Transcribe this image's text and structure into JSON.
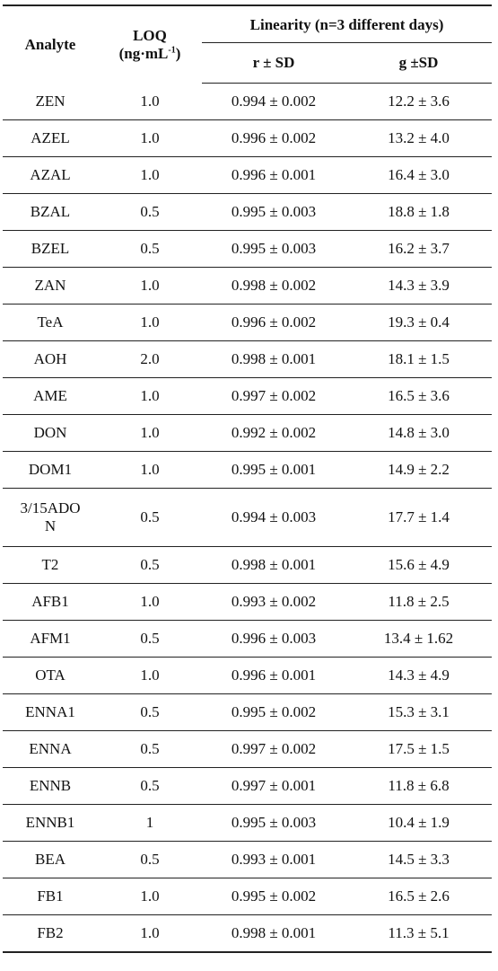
{
  "headers": {
    "analyte": "Analyte",
    "loq_line1": "LOQ",
    "loq_line2_prefix": "(ng·mL",
    "loq_sup": "-1",
    "loq_line2_suffix": ")",
    "linearity": "Linearity (n=3 different days)",
    "r_sd": "r ± SD",
    "g_sd": "g ±SD"
  },
  "rows": [
    {
      "analyte": "ZEN",
      "loq": "1.0",
      "r": "0.994 ± 0.002",
      "g": "12.2 ± 3.6"
    },
    {
      "analyte": "AZEL",
      "loq": "1.0",
      "r": "0.996 ± 0.002",
      "g": "13.2 ± 4.0"
    },
    {
      "analyte": "AZAL",
      "loq": "1.0",
      "r": "0.996 ± 0.001",
      "g": "16.4 ± 3.0"
    },
    {
      "analyte": "BZAL",
      "loq": "0.5",
      "r": "0.995 ± 0.003",
      "g": "18.8 ± 1.8"
    },
    {
      "analyte": "BZEL",
      "loq": "0.5",
      "r": "0.995 ± 0.003",
      "g": "16.2 ± 3.7"
    },
    {
      "analyte": "ZAN",
      "loq": "1.0",
      "r": "0.998 ± 0.002",
      "g": "14.3 ± 3.9"
    },
    {
      "analyte": "TeA",
      "loq": "1.0",
      "r": "0.996 ± 0.002",
      "g": "19.3 ± 0.4"
    },
    {
      "analyte": "AOH",
      "loq": "2.0",
      "r": "0.998 ± 0.001",
      "g": "18.1 ± 1.5"
    },
    {
      "analyte": "AME",
      "loq": "1.0",
      "r": "0.997 ± 0.002",
      "g": "16.5 ± 3.6"
    },
    {
      "analyte": "DON",
      "loq": "1.0",
      "r": "0.992  ± 0.002",
      "g": "14.8 ± 3.0"
    },
    {
      "analyte": "DOM1",
      "loq": "1.0",
      "r": "0.995 ± 0.001",
      "g": "14.9 ± 2.2"
    },
    {
      "analyte": "3/15ADON",
      "analyte_l1": "3/15ADO",
      "analyte_l2": "N",
      "loq": "0.5",
      "r": "0.994 ± 0.003",
      "g": "17.7 ± 1.4",
      "tall": true
    },
    {
      "analyte": "T2",
      "loq": "0.5",
      "r": "0.998 ± 0.001",
      "g": "15.6 ± 4.9"
    },
    {
      "analyte": "AFB1",
      "loq": "1.0",
      "r": "0.993 ± 0.002",
      "g": "11.8 ± 2.5"
    },
    {
      "analyte": "AFM1",
      "loq": "0.5",
      "r": "0.996 ± 0.003",
      "g": "13.4 ± 1.62"
    },
    {
      "analyte": "OTA",
      "loq": "1.0",
      "r": "0.996 ± 0.001",
      "g": "14.3 ± 4.9"
    },
    {
      "analyte": "ENNA1",
      "loq": "0.5",
      "r": "0.995 ± 0.002",
      "g": "15.3 ± 3.1"
    },
    {
      "analyte": "ENNA",
      "loq": "0.5",
      "r": "0.997  ± 0.002",
      "g": "17.5 ± 1.5"
    },
    {
      "analyte": "ENNB",
      "loq": "0.5",
      "r": "0.997 ± 0.001",
      "g": "11.8 ± 6.8"
    },
    {
      "analyte": "ENNB1",
      "loq": "1",
      "r": "0.995 ± 0.003",
      "g": "10.4 ± 1.9"
    },
    {
      "analyte": "BEA",
      "loq": "0.5",
      "r": "0.993 ± 0.001",
      "g": "14.5 ± 3.3"
    },
    {
      "analyte": "FB1",
      "loq": "1.0",
      "r": "0.995 ± 0.002",
      "g": "16.5 ± 2.6"
    },
    {
      "analyte": "FB2",
      "loq": "1.0",
      "r": "0.998 ± 0.001",
      "g": "11.3 ± 5.1"
    }
  ]
}
